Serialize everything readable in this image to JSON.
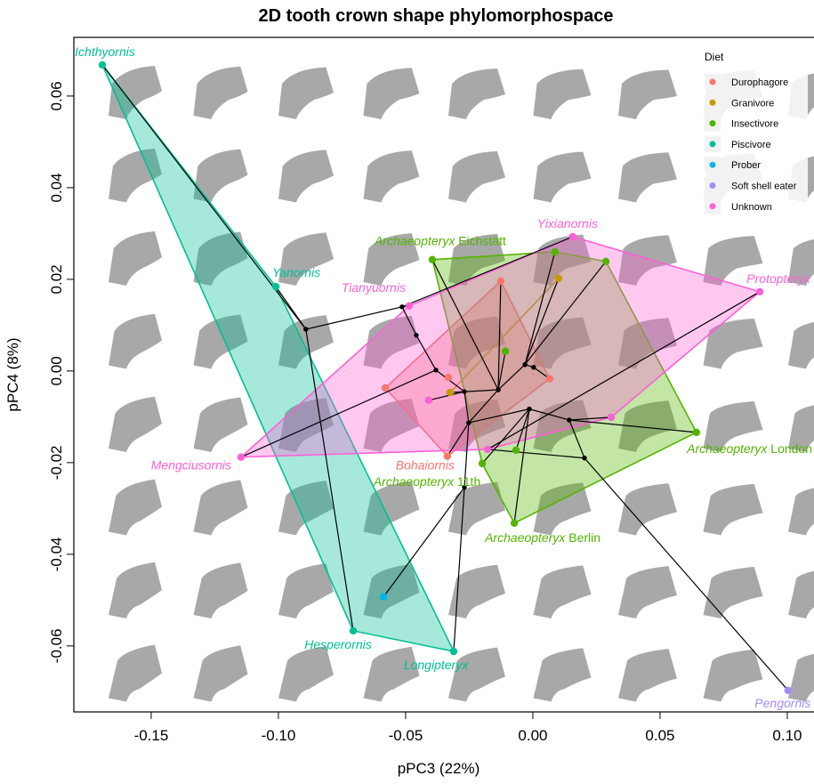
{
  "chart_data": {
    "type": "scatter",
    "title": "2D tooth crown shape phylomorphospace",
    "x_label": "pPC3 (22%)",
    "y_label": "pPC4 (8%)",
    "xlim": [
      -0.1804,
      0.1105
    ],
    "ylim": [
      -0.0744,
      0.0728
    ],
    "xticks": [
      -0.15,
      {
        "value": -0.1,
        "label": "-0.10"
      },
      -0.05,
      {
        "value": 0,
        "label": "0.00"
      },
      0.05,
      {
        "value": 0.1,
        "label": "0.10"
      }
    ],
    "yticks": [
      -0.06,
      -0.04,
      -0.02,
      {
        "value": 0,
        "label": "0.00"
      },
      0.02,
      0.04,
      0.06
    ],
    "legend_title": "Diet",
    "legend_position": "top-right",
    "convex_hulls": true,
    "series": [
      {
        "name": "Durophagore",
        "color": "#F8766D",
        "x": [
          -0.0126,
          0.0066,
          -0.0336,
          -0.058,
          -0.0332
        ],
        "y": [
          0.0196,
          -0.0017,
          -0.0186,
          -0.0037,
          -0.0014
        ],
        "labels": [
          null,
          null,
          "Bohaiornis",
          null,
          null
        ]
      },
      {
        "name": "Granivore",
        "color": "#C49A00",
        "x": [
          0.0101,
          -0.0325
        ],
        "y": [
          0.0202,
          -0.0047
        ],
        "labels": [
          null,
          null
        ]
      },
      {
        "name": "Insectivore",
        "color": "#53B400",
        "x": [
          -0.0395,
          0.0087,
          0.0287,
          0.0643,
          -0.0073,
          -0.0199,
          -0.0066,
          -0.0108
        ],
        "y": [
          0.0243,
          0.026,
          0.0239,
          -0.0134,
          -0.0332,
          -0.0202,
          -0.0173,
          0.0043
        ],
        "labels": [
          "Archaeopteryx Eichstätt",
          null,
          null,
          "Archaeopteryx London",
          "Archaeopteryx Berlin",
          "Archaeopteryx 11th",
          null,
          null
        ]
      },
      {
        "name": "Piscivore",
        "color": "#00C094",
        "x": [
          -0.1692,
          -0.101,
          -0.0706,
          -0.0311
        ],
        "y": [
          0.0668,
          0.0184,
          -0.0567,
          -0.0612
        ],
        "labels": [
          "Ichthyornis",
          "Yanornis",
          "Hesperornis",
          "Longipteryx"
        ]
      },
      {
        "name": "Prober",
        "color": "#00B6EB",
        "x": [
          -0.0587
        ],
        "y": [
          -0.0493
        ],
        "labels": [
          null
        ]
      },
      {
        "name": "Soft shell eater",
        "color": "#A58AFF",
        "x": [
          0.1003
        ],
        "y": [
          -0.0697
        ],
        "labels": [
          "Pengornis"
        ]
      },
      {
        "name": "Unknown",
        "color": "#FB61D7",
        "x": [
          0.0892,
          0.0157,
          -0.0486,
          -0.1147,
          -0.0409,
          -0.0178,
          0.0308
        ],
        "y": [
          0.0173,
          0.0293,
          0.0142,
          -0.0188,
          -0.0064,
          -0.0171,
          -0.0101
        ],
        "labels": [
          "Protopteryx",
          "Yixianornis",
          "Tianyuornis",
          "Mengciusornis",
          null,
          null,
          null
        ]
      }
    ],
    "phylogeny": {
      "color": "#000000",
      "edges": [
        [
          -0.1692,
          0.0668,
          -0.0892,
          0.0091
        ],
        [
          -0.101,
          0.0184,
          -0.0892,
          0.0091
        ],
        [
          -0.0892,
          0.0091,
          -0.0706,
          -0.0567
        ],
        [
          -0.0892,
          0.0091,
          -0.0514,
          0.014
        ],
        [
          -0.0514,
          0.014,
          -0.0486,
          0.0142
        ],
        [
          -0.0514,
          0.014,
          0.0157,
          0.0293
        ],
        [
          -0.0514,
          0.014,
          -0.0458,
          0.0078
        ],
        [
          -0.0458,
          0.0078,
          -0.0381,
          0.0002
        ],
        [
          -0.1147,
          -0.0188,
          -0.0381,
          0.0002
        ],
        [
          -0.0381,
          0.0002,
          -0.0269,
          -0.0045
        ],
        [
          -0.0269,
          -0.0045,
          -0.0409,
          -0.0064
        ],
        [
          -0.0269,
          -0.0045,
          -0.0252,
          -0.0113
        ],
        [
          -0.0252,
          -0.0113,
          -0.0336,
          -0.0186
        ],
        [
          -0.0252,
          -0.0113,
          -0.0269,
          -0.0254
        ],
        [
          -0.0269,
          -0.0254,
          -0.0311,
          -0.0612
        ],
        [
          -0.0269,
          -0.0254,
          -0.0587,
          -0.0493
        ],
        [
          -0.0252,
          -0.0113,
          -0.0136,
          -0.0041
        ],
        [
          -0.0136,
          -0.0041,
          -0.0126,
          0.0196
        ],
        [
          -0.0136,
          -0.0041,
          -0.0395,
          0.0243
        ],
        [
          -0.0136,
          -0.0041,
          -0.0031,
          0.0014
        ],
        [
          -0.0031,
          0.0014,
          0.0087,
          0.026
        ],
        [
          -0.0031,
          0.0014,
          0.0287,
          0.0239
        ],
        [
          -0.0031,
          0.0014,
          0.0101,
          0.0202
        ],
        [
          -0.0136,
          -0.0041,
          -0.0108,
          0.0043
        ],
        [
          -0.0031,
          0.0014,
          0.0003,
          0.0008
        ],
        [
          0.0003,
          0.0008,
          0.0066,
          -0.0017
        ],
        [
          -0.0136,
          -0.0041,
          -0.0325,
          -0.0047
        ],
        [
          -0.0252,
          -0.0113,
          -0.0014,
          -0.0083
        ],
        [
          -0.0014,
          -0.0083,
          0.0143,
          -0.0107
        ],
        [
          0.0143,
          -0.0107,
          0.0643,
          -0.0134
        ],
        [
          0.0143,
          -0.0107,
          0.0308,
          -0.0101
        ],
        [
          0.0143,
          -0.0107,
          0.0203,
          -0.019
        ],
        [
          0.0203,
          -0.019,
          0.1003,
          -0.0697
        ],
        [
          0.0203,
          -0.019,
          -0.0178,
          -0.0171
        ],
        [
          -0.0014,
          -0.0083,
          -0.0073,
          -0.0332
        ],
        [
          -0.0014,
          -0.0083,
          -0.0199,
          -0.0202
        ],
        [
          -0.0014,
          -0.0083,
          -0.0066,
          -0.0173
        ],
        [
          -0.0178,
          -0.0171,
          0.0892,
          0.0173
        ]
      ]
    }
  }
}
